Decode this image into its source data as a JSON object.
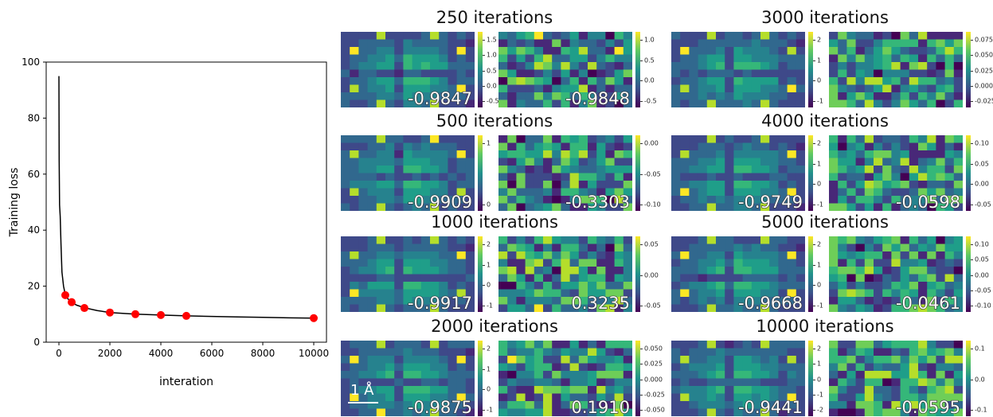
{
  "chart_data": [
    {
      "type": "line",
      "title": "",
      "xlabel": "interation",
      "ylabel": "Training loss",
      "xlim": [
        -500,
        10500
      ],
      "ylim": [
        0,
        100
      ],
      "xticks": [
        0,
        2000,
        4000,
        6000,
        8000,
        10000
      ],
      "yticks": [
        0,
        20,
        40,
        60,
        80,
        100
      ],
      "series": [
        {
          "values_x": [
            0,
            10,
            25,
            50,
            80,
            120,
            180,
            250,
            350,
            500,
            700,
            1000,
            1500,
            2000,
            2500,
            3000,
            4000,
            5000,
            6000,
            7000,
            8000,
            9000,
            10000
          ],
          "values_y": [
            95,
            65,
            49,
            45,
            35,
            25,
            20,
            17,
            15.5,
            14.2,
            13.2,
            12.3,
            11.3,
            10.6,
            10.3,
            10.0,
            9.7,
            9.4,
            9.2,
            9.0,
            8.9,
            8.7,
            8.6
          ]
        }
      ],
      "markers": {
        "x": [
          250,
          500,
          1000,
          2000,
          3000,
          4000,
          5000,
          10000
        ],
        "y": [
          16.8,
          14.3,
          12.2,
          10.6,
          10.0,
          9.7,
          9.4,
          8.6
        ]
      }
    },
    {
      "type": "heatmap",
      "panels": [
        {
          "title": "250 iterations",
          "maps": [
            {
              "corr": "-0.9847",
              "ticks": [
                "1.5",
                "1.0",
                "0.5",
                "0.0",
                "-0.5"
              ]
            },
            {
              "corr": "-0.9848",
              "ticks": [
                "1.0",
                "0.5",
                "0.0",
                "-0.5"
              ]
            }
          ]
        },
        {
          "title": "3000 iterations",
          "maps": [
            {
              "corr": "",
              "ticks": [
                "2",
                "1",
                "0",
                "-1"
              ]
            },
            {
              "corr": "",
              "ticks": [
                "0.075",
                "0.050",
                "0.025",
                "0.000",
                "-0.025"
              ]
            }
          ]
        },
        {
          "title": "500 iterations",
          "maps": [
            {
              "corr": "-0.9909",
              "ticks": [
                "1",
                "0"
              ]
            },
            {
              "corr": "-0.3303",
              "ticks": [
                "0.00",
                "-0.05",
                "-0.10"
              ]
            }
          ]
        },
        {
          "title": "4000 iterations",
          "maps": [
            {
              "corr": "-0.9749",
              "ticks": [
                "2",
                "1",
                "0",
                "-1"
              ]
            },
            {
              "corr": "-0.0598",
              "ticks": [
                "0.10",
                "0.05",
                "0.00",
                "-0.05"
              ]
            }
          ]
        },
        {
          "title": "1000 iterations",
          "maps": [
            {
              "corr": "-0.9917",
              "ticks": [
                "2",
                "1",
                "0",
                "-1"
              ]
            },
            {
              "corr": "0.3235",
              "ticks": [
                "0.05",
                "0.00",
                "-0.05"
              ]
            }
          ]
        },
        {
          "title": "5000 iterations",
          "maps": [
            {
              "corr": "-0.9668",
              "ticks": [
                "2",
                "1",
                "0",
                "-1"
              ]
            },
            {
              "corr": "-0.0461",
              "ticks": [
                "0.10",
                "0.05",
                "0.00",
                "-0.05",
                "-0.10"
              ]
            }
          ]
        },
        {
          "title": "2000 iterations",
          "maps": [
            {
              "corr": "-0.9875",
              "ticks": [
                "2",
                "1",
                "0",
                "-1"
              ]
            },
            {
              "corr": "0.1910",
              "ticks": [
                "0.050",
                "0.025",
                "0.000",
                "-0.025",
                "-0.050"
              ]
            }
          ]
        },
        {
          "title": "10000 iterations",
          "maps": [
            {
              "corr": "-0.9441",
              "ticks": [
                "2",
                "1",
                "0",
                "-1",
                "-2"
              ]
            },
            {
              "corr": "-0.0595",
              "ticks": [
                "0.1",
                "0.0",
                "-0.1"
              ]
            }
          ]
        }
      ]
    }
  ],
  "scale_bar_label": "1 Å",
  "colors": {
    "line": "#000000",
    "marker": "#ff0000",
    "colormap": "viridis"
  }
}
